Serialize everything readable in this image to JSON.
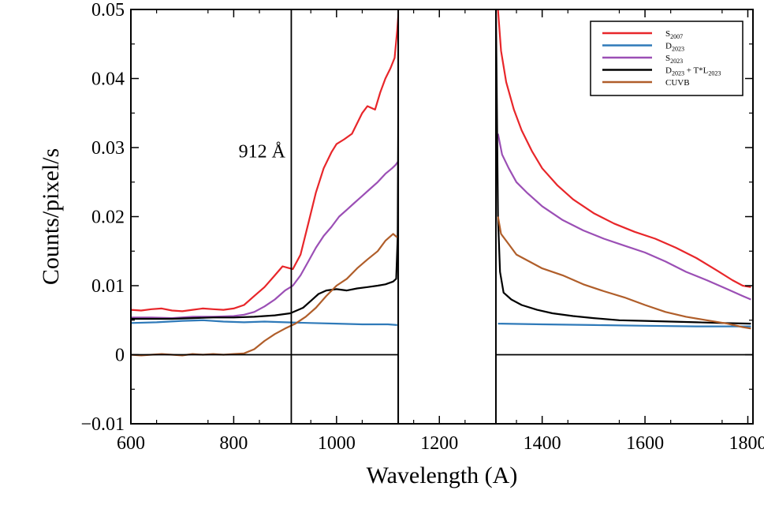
{
  "chart_data": {
    "type": "line",
    "xlabel": "Wavelength (A)",
    "ylabel": "Counts/pixel/s",
    "xlim": [
      600,
      1810
    ],
    "ylim": [
      -0.01,
      0.05
    ],
    "xticks": [
      600,
      800,
      1000,
      1200,
      1400,
      1600,
      1800
    ],
    "xtick_labels": [
      "600",
      "800",
      "1000",
      "1200",
      "1400",
      "1600",
      "1800"
    ],
    "yticks": [
      -0.01,
      0,
      0.01,
      0.02,
      0.03,
      0.04,
      0.05
    ],
    "ytick_labels": [
      "−0.01",
      "0",
      "0.01",
      "0.02",
      "0.03",
      "0.04",
      "0.05"
    ],
    "grid": false,
    "legend_position": "top-right",
    "annotations": [
      {
        "text": "912 Å",
        "x": 855,
        "y": 0.0295
      }
    ],
    "reference_lines": {
      "vertical_x": 912,
      "horizontal_y": 0
    },
    "gap_box": {
      "x": [
        1120,
        1310
      ],
      "y": [
        -0.01,
        0.05
      ]
    },
    "series": [
      {
        "name": "S2007",
        "label_main": "S",
        "label_sub": "2007",
        "label_rest": "",
        "color": "#e8262a",
        "segments": [
          [
            [
              600,
              0.0065
            ],
            [
              620,
              0.0064
            ],
            [
              640,
              0.0066
            ],
            [
              660,
              0.0067
            ],
            [
              680,
              0.0064
            ],
            [
              700,
              0.0063
            ],
            [
              720,
              0.0065
            ],
            [
              740,
              0.0067
            ],
            [
              760,
              0.0066
            ],
            [
              780,
              0.0065
            ],
            [
              800,
              0.0067
            ],
            [
              820,
              0.0072
            ],
            [
              840,
              0.0085
            ],
            [
              860,
              0.0098
            ],
            [
              880,
              0.0115
            ],
            [
              895,
              0.0128
            ],
            [
              905,
              0.0126
            ],
            [
              915,
              0.0124
            ],
            [
              930,
              0.0145
            ],
            [
              945,
              0.019
            ],
            [
              960,
              0.0235
            ],
            [
              975,
              0.027
            ],
            [
              990,
              0.0293
            ],
            [
              1000,
              0.0305
            ],
            [
              1015,
              0.0312
            ],
            [
              1030,
              0.032
            ],
            [
              1040,
              0.0335
            ],
            [
              1050,
              0.035
            ],
            [
              1060,
              0.036
            ],
            [
              1075,
              0.0355
            ],
            [
              1085,
              0.038
            ],
            [
              1095,
              0.04
            ],
            [
              1105,
              0.0415
            ],
            [
              1113,
              0.043
            ],
            [
              1118,
              0.047
            ],
            [
              1121,
              0.05
            ]
          ],
          [
            [
              1314,
              0.05
            ],
            [
              1320,
              0.044
            ],
            [
              1330,
              0.0395
            ],
            [
              1345,
              0.0355
            ],
            [
              1360,
              0.0325
            ],
            [
              1380,
              0.0295
            ],
            [
              1400,
              0.027
            ],
            [
              1430,
              0.0245
            ],
            [
              1460,
              0.0225
            ],
            [
              1500,
              0.0205
            ],
            [
              1540,
              0.019
            ],
            [
              1580,
              0.0178
            ],
            [
              1620,
              0.0168
            ],
            [
              1660,
              0.0155
            ],
            [
              1700,
              0.014
            ],
            [
              1740,
              0.0122
            ],
            [
              1770,
              0.0108
            ],
            [
              1790,
              0.01
            ],
            [
              1806,
              0.0098
            ]
          ]
        ]
      },
      {
        "name": "D2023",
        "label_main": "D",
        "label_sub": "2023",
        "label_rest": "",
        "color": "#2f7ab9",
        "segments": [
          [
            [
              600,
              0.0046
            ],
            [
              650,
              0.0047
            ],
            [
              700,
              0.0049
            ],
            [
              740,
              0.005
            ],
            [
              780,
              0.0048
            ],
            [
              820,
              0.0047
            ],
            [
              860,
              0.0048
            ],
            [
              900,
              0.0047
            ],
            [
              950,
              0.0046
            ],
            [
              1000,
              0.0045
            ],
            [
              1050,
              0.0044
            ],
            [
              1100,
              0.0044
            ],
            [
              1118,
              0.0043
            ]
          ],
          [
            [
              1314,
              0.0045
            ],
            [
              1400,
              0.0044
            ],
            [
              1500,
              0.0043
            ],
            [
              1600,
              0.0042
            ],
            [
              1700,
              0.0041
            ],
            [
              1806,
              0.0041
            ]
          ]
        ]
      },
      {
        "name": "S2023",
        "label_main": "S",
        "label_sub": "2023",
        "label_rest": "",
        "color": "#9b4fb5",
        "segments": [
          [
            [
              600,
              0.0054
            ],
            [
              640,
              0.0054
            ],
            [
              680,
              0.0053
            ],
            [
              720,
              0.0055
            ],
            [
              760,
              0.0055
            ],
            [
              800,
              0.0056
            ],
            [
              820,
              0.0058
            ],
            [
              840,
              0.0062
            ],
            [
              860,
              0.007
            ],
            [
              880,
              0.008
            ],
            [
              900,
              0.0093
            ],
            [
              915,
              0.01
            ],
            [
              930,
              0.0115
            ],
            [
              945,
              0.0135
            ],
            [
              960,
              0.0155
            ],
            [
              975,
              0.0172
            ],
            [
              990,
              0.0185
            ],
            [
              1005,
              0.02
            ],
            [
              1020,
              0.021
            ],
            [
              1035,
              0.022
            ],
            [
              1050,
              0.023
            ],
            [
              1065,
              0.024
            ],
            [
              1080,
              0.025
            ],
            [
              1095,
              0.0262
            ],
            [
              1108,
              0.027
            ],
            [
              1115,
              0.0275
            ],
            [
              1120,
              0.028
            ]
          ],
          [
            [
              1314,
              0.032
            ],
            [
              1322,
              0.029
            ],
            [
              1335,
              0.027
            ],
            [
              1350,
              0.025
            ],
            [
              1370,
              0.0235
            ],
            [
              1400,
              0.0215
            ],
            [
              1440,
              0.0195
            ],
            [
              1480,
              0.018
            ],
            [
              1520,
              0.0168
            ],
            [
              1560,
              0.0158
            ],
            [
              1600,
              0.0148
            ],
            [
              1640,
              0.0135
            ],
            [
              1680,
              0.012
            ],
            [
              1720,
              0.0108
            ],
            [
              1760,
              0.0095
            ],
            [
              1790,
              0.0085
            ],
            [
              1806,
              0.008
            ]
          ]
        ]
      },
      {
        "name": "D2023 + T*L2023",
        "label_main": "D",
        "label_sub": "2023",
        "label_rest": " + T*L",
        "label_sub2": "2023",
        "color": "#000000",
        "segments": [
          [
            [
              600,
              0.0052
            ],
            [
              640,
              0.0052
            ],
            [
              680,
              0.0052
            ],
            [
              720,
              0.0053
            ],
            [
              760,
              0.0054
            ],
            [
              800,
              0.0054
            ],
            [
              840,
              0.0055
            ],
            [
              880,
              0.0057
            ],
            [
              910,
              0.006
            ],
            [
              935,
              0.0068
            ],
            [
              950,
              0.0078
            ],
            [
              965,
              0.0088
            ],
            [
              980,
              0.0093
            ],
            [
              1000,
              0.0095
            ],
            [
              1020,
              0.0093
            ],
            [
              1040,
              0.0096
            ],
            [
              1060,
              0.0098
            ],
            [
              1080,
              0.01
            ],
            [
              1095,
              0.0102
            ],
            [
              1110,
              0.0106
            ],
            [
              1116,
              0.011
            ],
            [
              1119,
              0.017
            ],
            [
              1121,
              0.05
            ]
          ],
          [
            [
              1310,
              0.05
            ],
            [
              1314,
              0.02
            ],
            [
              1318,
              0.012
            ],
            [
              1325,
              0.009
            ],
            [
              1340,
              0.008
            ],
            [
              1360,
              0.0072
            ],
            [
              1390,
              0.0065
            ],
            [
              1420,
              0.006
            ],
            [
              1460,
              0.0056
            ],
            [
              1500,
              0.0053
            ],
            [
              1550,
              0.005
            ],
            [
              1600,
              0.0049
            ],
            [
              1650,
              0.0048
            ],
            [
              1700,
              0.0047
            ],
            [
              1750,
              0.0046
            ],
            [
              1806,
              0.0045
            ]
          ]
        ]
      },
      {
        "name": "CUVB",
        "label_main": "CUVB",
        "label_sub": "",
        "label_rest": "",
        "color": "#b05e2a",
        "segments": [
          [
            [
              600,
              0.0
            ],
            [
              620,
              -0.0001
            ],
            [
              640,
              0.0
            ],
            [
              660,
              0.0001
            ],
            [
              680,
              0.0
            ],
            [
              700,
              -0.0001
            ],
            [
              720,
              0.0001
            ],
            [
              740,
              0.0
            ],
            [
              760,
              0.0001
            ],
            [
              780,
              0.0
            ],
            [
              800,
              0.0001
            ],
            [
              820,
              0.0002
            ],
            [
              840,
              0.0008
            ],
            [
              860,
              0.002
            ],
            [
              880,
              0.003
            ],
            [
              900,
              0.0038
            ],
            [
              920,
              0.0045
            ],
            [
              940,
              0.0055
            ],
            [
              960,
              0.0068
            ],
            [
              980,
              0.0085
            ],
            [
              1000,
              0.01
            ],
            [
              1020,
              0.011
            ],
            [
              1040,
              0.0125
            ],
            [
              1060,
              0.0138
            ],
            [
              1080,
              0.015
            ],
            [
              1095,
              0.0165
            ],
            [
              1110,
              0.0175
            ],
            [
              1118,
              0.017
            ]
          ],
          [
            [
              1314,
              0.02
            ],
            [
              1320,
              0.0175
            ],
            [
              1335,
              0.016
            ],
            [
              1350,
              0.0145
            ],
            [
              1375,
              0.0135
            ],
            [
              1400,
              0.0125
            ],
            [
              1440,
              0.0115
            ],
            [
              1480,
              0.0102
            ],
            [
              1520,
              0.0092
            ],
            [
              1560,
              0.0083
            ],
            [
              1600,
              0.0072
            ],
            [
              1640,
              0.0062
            ],
            [
              1680,
              0.0055
            ],
            [
              1720,
              0.005
            ],
            [
              1760,
              0.0045
            ],
            [
              1790,
              0.004
            ],
            [
              1806,
              0.0038
            ]
          ]
        ]
      }
    ]
  }
}
